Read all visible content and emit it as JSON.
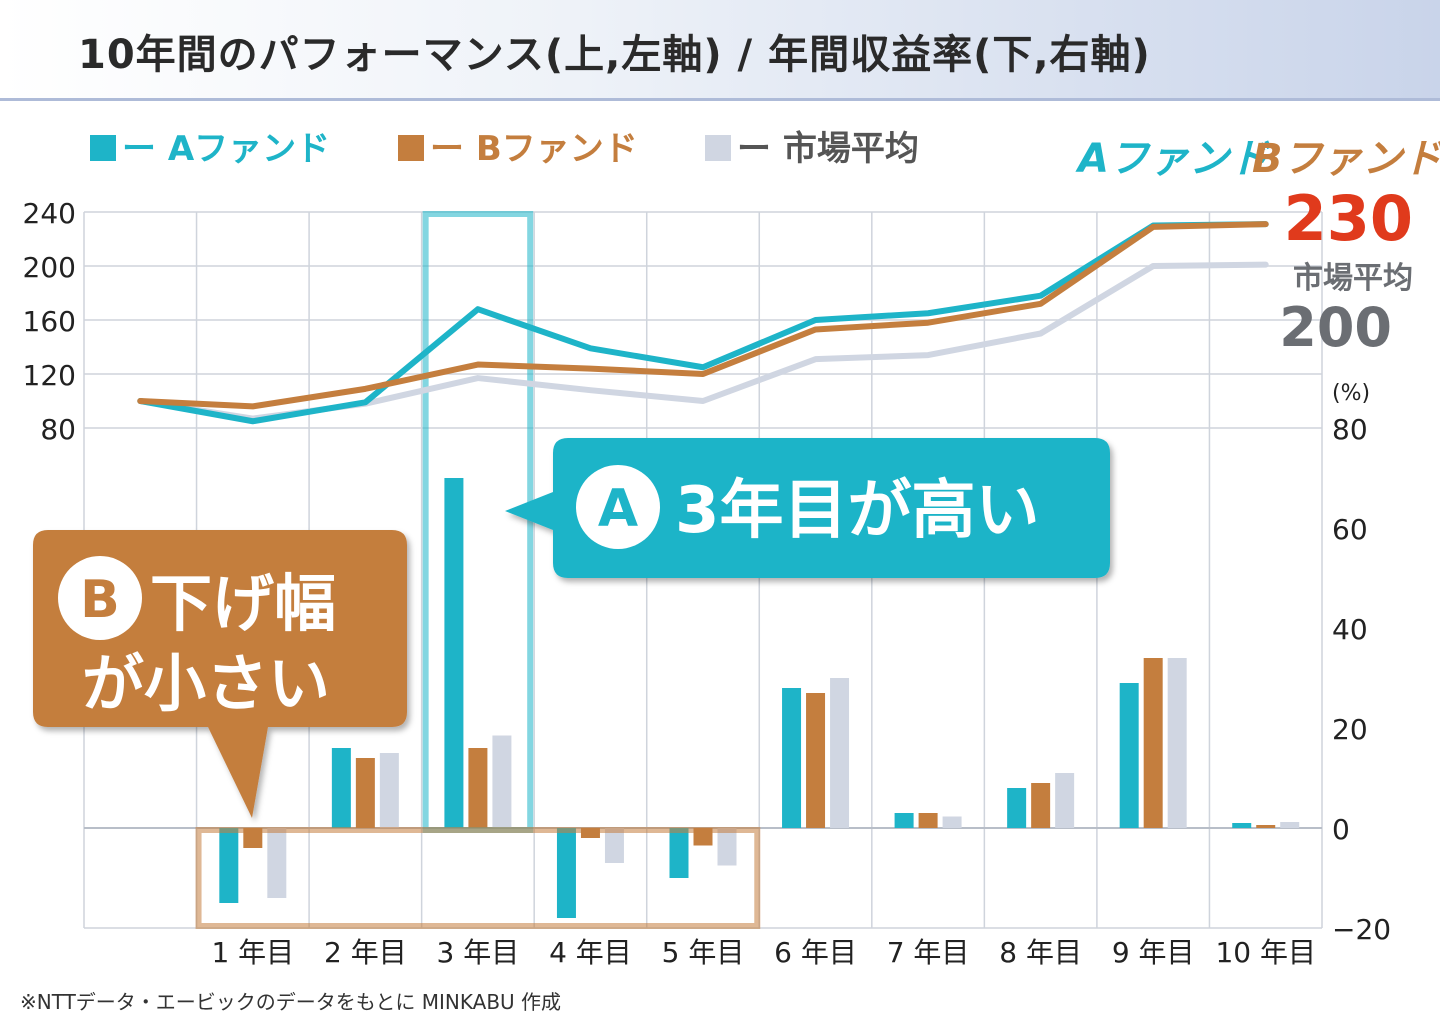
{
  "header": {
    "title": "10年間のパフォーマンス(上,左軸) / 年間収益率(下,右軸)"
  },
  "legend": {
    "items": [
      {
        "label": "ー Aファンド",
        "color": "#1eb4c8"
      },
      {
        "label": "ー Bファンド",
        "color": "#c47e3e"
      },
      {
        "label": "ー 市場平均",
        "color": "#d0d6e2"
      }
    ]
  },
  "right_labels": {
    "a_fund": "Aファンド",
    "b_fund": "Bファンド",
    "ab_value": "230",
    "market": "市場平均",
    "market_value": "200"
  },
  "callouts": {
    "a": {
      "badge": "A",
      "text": "3年目が高い"
    },
    "b": {
      "badge": "B",
      "line1": "下げ幅",
      "line2": "が小さい"
    }
  },
  "footnote": "※NTTデータ・エービックのデータをもとに MINKABU 作成",
  "colors": {
    "a": "#1eb4c8",
    "b": "#c47e3e",
    "market": "#d0d6e2",
    "highlight_red": "#e03a1c",
    "grey_text": "#6b6e73"
  },
  "chart_data": [
    {
      "type": "line",
      "title": "10年間のパフォーマンス",
      "axis": "left",
      "ylim": [
        80,
        240
      ],
      "y_ticks": [
        "240",
        "200",
        "160",
        "120",
        "80"
      ],
      "x_points": [
        0,
        1,
        2,
        3,
        4,
        5,
        6,
        7,
        8,
        9,
        10
      ],
      "series": [
        {
          "name": "Aファンド",
          "values": [
            100,
            85,
            99,
            168,
            139,
            125,
            160,
            165,
            178,
            230,
            231
          ]
        },
        {
          "name": "Bファンド",
          "values": [
            100,
            96,
            109,
            127,
            124,
            120,
            153,
            158,
            172,
            229,
            231
          ]
        },
        {
          "name": "市場平均",
          "values": [
            100,
            87,
            98,
            117,
            108,
            100,
            131,
            134,
            150,
            200,
            201
          ]
        }
      ]
    },
    {
      "type": "bar",
      "title": "年間収益率",
      "axis": "right",
      "unit": "(%)",
      "ylim": [
        -20,
        80
      ],
      "y_ticks": [
        "80",
        "60",
        "40",
        "20",
        "0",
        "−20"
      ],
      "categories": [
        "1 年目",
        "2 年目",
        "3 年目",
        "4 年目",
        "5 年目",
        "6 年目",
        "7 年目",
        "8 年目",
        "9 年目",
        "10 年目"
      ],
      "series": [
        {
          "name": "Aファンド",
          "values": [
            -15,
            16,
            70,
            -18,
            -10,
            28,
            3,
            8,
            29,
            1
          ]
        },
        {
          "name": "Bファンド",
          "values": [
            -4,
            14,
            16,
            -2,
            -3.5,
            27,
            3,
            9,
            34,
            0.6
          ]
        },
        {
          "name": "市場平均",
          "values": [
            -14,
            15,
            18.5,
            -7,
            -7.5,
            30,
            2.3,
            11,
            34,
            1.2
          ]
        }
      ]
    }
  ]
}
